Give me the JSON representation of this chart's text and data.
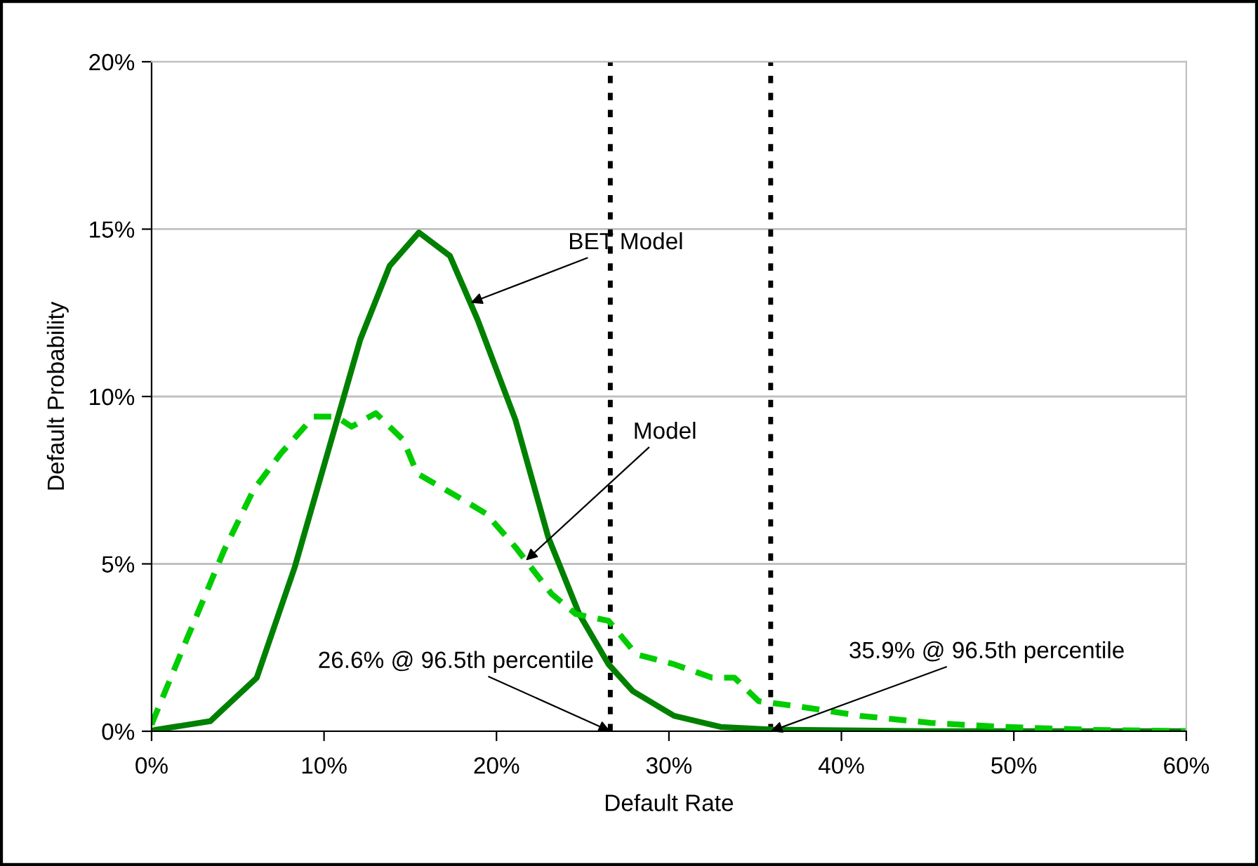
{
  "chart_data": {
    "type": "line",
    "xlabel": "Default Rate",
    "ylabel": "Default Probability",
    "xlim": [
      0,
      60
    ],
    "ylim": [
      0,
      20
    ],
    "xticks": [
      {
        "value": 0,
        "label": "0%"
      },
      {
        "value": 10,
        "label": "10%"
      },
      {
        "value": 20,
        "label": "20%"
      },
      {
        "value": 30,
        "label": "30%"
      },
      {
        "value": 40,
        "label": "40%"
      },
      {
        "value": 50,
        "label": "50%"
      },
      {
        "value": 60,
        "label": "60%"
      }
    ],
    "yticks": [
      {
        "value": 0,
        "label": "0%"
      },
      {
        "value": 5,
        "label": "5%"
      },
      {
        "value": 10,
        "label": "10%"
      },
      {
        "value": 15,
        "label": "15%"
      },
      {
        "value": 20,
        "label": "20%"
      }
    ],
    "grid": "y",
    "legend": false,
    "marker": "none",
    "series": [
      {
        "color": "#008000",
        "line_style": "solid",
        "x": [
          0,
          0.2,
          3.4,
          6.1,
          8.3,
          10.2,
          12.1,
          13.8,
          15.5,
          17.3,
          18.9,
          21.1,
          23.0,
          24.8,
          26.5,
          27.9,
          30.3,
          33.0,
          36.0,
          45,
          60
        ],
        "values": [
          0,
          0.04,
          0.3,
          1.6,
          4.9,
          8.3,
          11.7,
          13.9,
          14.9,
          14.2,
          12.3,
          9.3,
          5.8,
          3.5,
          2.0,
          1.2,
          0.46,
          0.13,
          0.05,
          0,
          0
        ]
      },
      {
        "color": "#00cc00",
        "line_style": "dashed",
        "x": [
          0,
          0.2,
          2.0,
          4.2,
          5.9,
          7.5,
          9.4,
          10.7,
          11.6,
          13.0,
          14.6,
          15.4,
          18.1,
          19.4,
          21.1,
          23.2,
          24.6,
          26.5,
          28.1,
          30.3,
          32.5,
          33.8,
          35.2,
          37.4,
          41.1,
          45.2,
          49.3,
          54.7,
          60
        ],
        "values": [
          0.2,
          0.46,
          2.7,
          5.4,
          7.2,
          8.3,
          9.4,
          9.4,
          9.1,
          9.5,
          8.7,
          7.7,
          6.9,
          6.5,
          5.5,
          4.1,
          3.5,
          3.3,
          2.3,
          2.0,
          1.6,
          1.6,
          0.9,
          0.75,
          0.46,
          0.25,
          0.13,
          0.04,
          0
        ]
      }
    ],
    "ref_lines": [
      {
        "axis": "x",
        "value": 26.6,
        "color": "#000000",
        "line_style": "dotted"
      },
      {
        "axis": "x",
        "value": 35.9,
        "color": "#000000",
        "line_style": "dotted"
      }
    ],
    "annotations": [
      {
        "text": "BET Model",
        "x": 18.5,
        "y": 12.8
      },
      {
        "text": "Model",
        "x": 21.7,
        "y": 5.1
      },
      {
        "text": "26.6% @ 96.5th percentile",
        "x": 26.6,
        "y": 0
      },
      {
        "text": "35.9% @ 96.5th percentile",
        "x": 35.9,
        "y": 0
      }
    ]
  }
}
